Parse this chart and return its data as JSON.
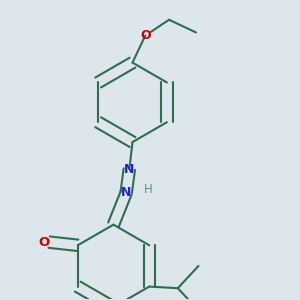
{
  "background_color": "#dde6ea",
  "bond_color": "#2d6e4e",
  "atom_colors": {
    "O": "#cc0000",
    "N": "#2222cc",
    "H": "#5a9090",
    "C": "#2d6e4e"
  },
  "figsize": [
    3.0,
    3.0
  ],
  "dpi": 100
}
